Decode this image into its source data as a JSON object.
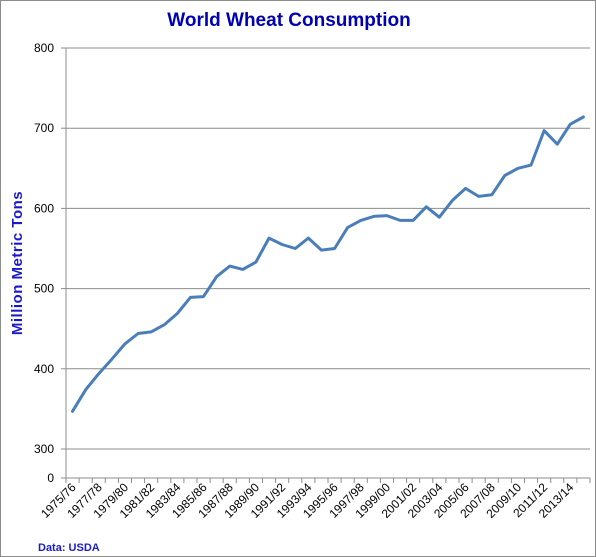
{
  "chart_data": {
    "type": "line",
    "title": "World Wheat Consumption",
    "ylabel": "Million Metric Tons",
    "xlabel": "",
    "source": "Data: USDA",
    "ylim": [
      0,
      800
    ],
    "y_ticks": [
      0,
      300,
      400,
      500,
      600,
      700,
      800
    ],
    "y_axis_break": "between 0 and 300",
    "grid": "horizontal",
    "legend": "none",
    "line_color": "#4a7ebb",
    "x": [
      "1975/76",
      "1976/77",
      "1977/78",
      "1978/79",
      "1979/80",
      "1980/81",
      "1981/82",
      "1982/83",
      "1983/84",
      "1984/85",
      "1985/86",
      "1986/87",
      "1987/88",
      "1988/89",
      "1989/90",
      "1990/91",
      "1991/92",
      "1992/93",
      "1993/94",
      "1994/95",
      "1995/96",
      "1996/97",
      "1997/98",
      "1998/99",
      "1999/00",
      "2000/01",
      "2001/02",
      "2002/03",
      "2003/04",
      "2004/05",
      "2005/06",
      "2006/07",
      "2007/08",
      "2008/09",
      "2009/10",
      "2010/11",
      "2011/12",
      "2012/13",
      "2013/14",
      "2014/15"
    ],
    "x_tick_labels": [
      "1975/76",
      "1977/78",
      "1979/80",
      "1981/82",
      "1983/84",
      "1985/86",
      "1987/88",
      "1989/90",
      "1991/92",
      "1993/94",
      "1995/96",
      "1997/98",
      "1999/00",
      "2001/02",
      "2003/04",
      "2005/06",
      "2007/08",
      "2009/10",
      "2011/12",
      "2013/14"
    ],
    "series": [
      {
        "values": [
          347,
          374,
          394,
          412,
          431,
          444,
          446,
          455,
          469,
          489,
          490,
          515,
          528,
          524,
          533,
          563,
          555,
          550,
          563,
          548,
          550,
          576,
          585,
          590,
          591,
          585,
          585,
          602,
          589,
          610,
          625,
          615,
          617,
          641,
          650,
          654,
          697,
          680,
          705,
          714
        ]
      }
    ]
  }
}
